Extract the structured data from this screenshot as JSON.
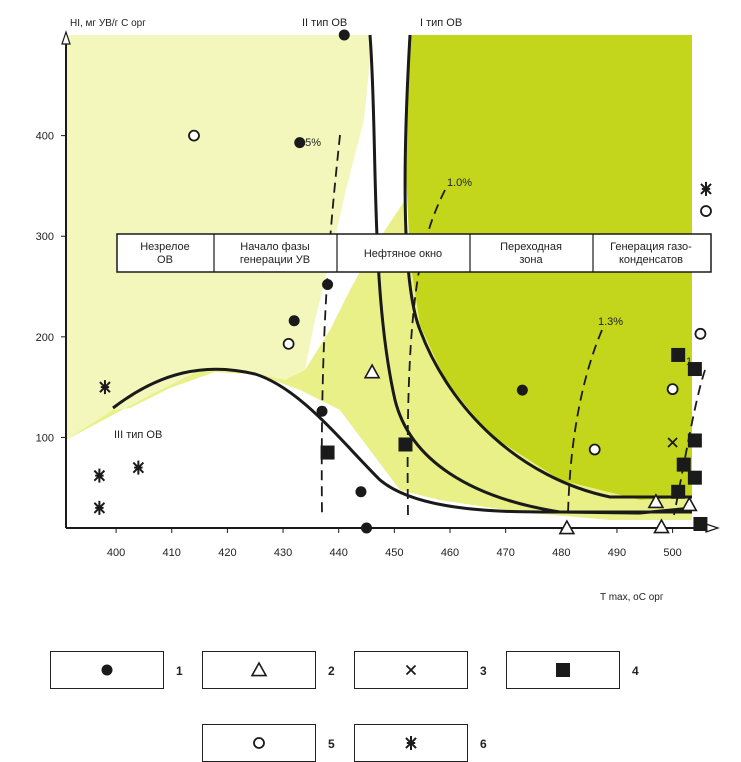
{
  "chart_data": {
    "type": "scatter",
    "xlabel": "T max, оС орг",
    "ylabel": "HI, мг УВ/г С орг",
    "xlim": [
      391,
      506
    ],
    "ylim": [
      10,
      500
    ],
    "x_ticks": [
      "400",
      "410",
      "420",
      "430",
      "440",
      "450",
      "460",
      "470",
      "480",
      "490",
      "500"
    ],
    "y_ticks": [
      "100",
      "200",
      "300",
      "400"
    ],
    "zones": [
      "Незрелое\nОВ",
      "Начало фазы\nгенерации УВ",
      "Нефтяное окно",
      "Переходная\nзона",
      "Генерация газо-\nконденсатов"
    ],
    "kerogen_labels": [
      "II тип ОВ",
      "I тип ОВ",
      "III тип ОВ"
    ],
    "ro_labels": [
      "0.5%",
      "1.0%",
      "1.3%",
      "1,"
    ],
    "colors": {
      "yellow_light": "#f3f7bc",
      "yellow_mid": "#e9f087",
      "green": "#c3d61b",
      "ink": "#1a1a1a"
    },
    "series": [
      {
        "marker": "filled-circle",
        "legend": "1",
        "points": [
          [
            441,
            500
          ],
          [
            433,
            393
          ],
          [
            438,
            252
          ],
          [
            432,
            216
          ],
          [
            437,
            126
          ],
          [
            444,
            46
          ],
          [
            445,
            10
          ],
          [
            473,
            147
          ]
        ]
      },
      {
        "marker": "open-triangle",
        "legend": "2",
        "points": [
          [
            446,
            165
          ],
          [
            481,
            10
          ],
          [
            497,
            36
          ],
          [
            498,
            11
          ],
          [
            503,
            33
          ]
        ]
      },
      {
        "marker": "cross",
        "legend": "3",
        "points": [
          [
            500,
            95
          ]
        ]
      },
      {
        "marker": "filled-square",
        "legend": "4",
        "points": [
          [
            438,
            85
          ],
          [
            452,
            93
          ],
          [
            501,
            182
          ],
          [
            504,
            168
          ],
          [
            504,
            97
          ],
          [
            502,
            73
          ],
          [
            504,
            60
          ],
          [
            501,
            46
          ],
          [
            505,
            14
          ]
        ]
      },
      {
        "marker": "open-circle",
        "legend": "5",
        "points": [
          [
            414,
            400
          ],
          [
            431,
            193
          ],
          [
            486,
            88
          ],
          [
            500,
            148
          ],
          [
            505,
            203
          ],
          [
            506,
            325
          ]
        ]
      },
      {
        "marker": "asterisk",
        "legend": "6",
        "points": [
          [
            398,
            150
          ],
          [
            397,
            62
          ],
          [
            397,
            30
          ],
          [
            404,
            70
          ],
          [
            506,
            347
          ]
        ]
      }
    ]
  },
  "legend": [
    {
      "marker": "filled-circle",
      "label": "1"
    },
    {
      "marker": "open-triangle",
      "label": "2"
    },
    {
      "marker": "cross",
      "label": "3"
    },
    {
      "marker": "filled-square",
      "label": "4"
    },
    {
      "marker": "open-circle",
      "label": "5"
    },
    {
      "marker": "asterisk",
      "label": "6"
    }
  ]
}
